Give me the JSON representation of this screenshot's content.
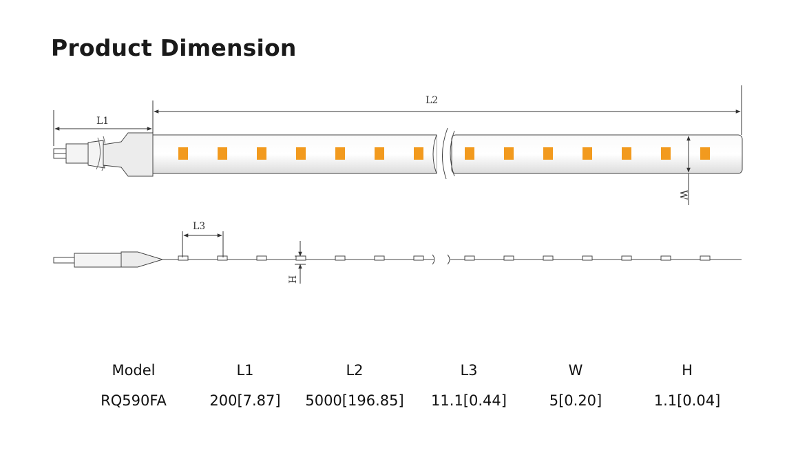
{
  "title": "Product Dimension",
  "drawing": {
    "labels": {
      "l1": "L1",
      "l2": "L2",
      "l3": "L3",
      "w": "W",
      "h": "H"
    },
    "colors": {
      "led": "#f29a1e",
      "strip": "#eeeeee",
      "line": "#333333"
    }
  },
  "table": {
    "headers": [
      "Model",
      "L1",
      "L2",
      "L3",
      "W",
      "H"
    ],
    "rows": [
      [
        "RQ590FA",
        "200[7.87]",
        "5000[196.85]",
        "11.1[0.44]",
        "5[0.20]",
        "1.1[0.04]"
      ]
    ]
  }
}
